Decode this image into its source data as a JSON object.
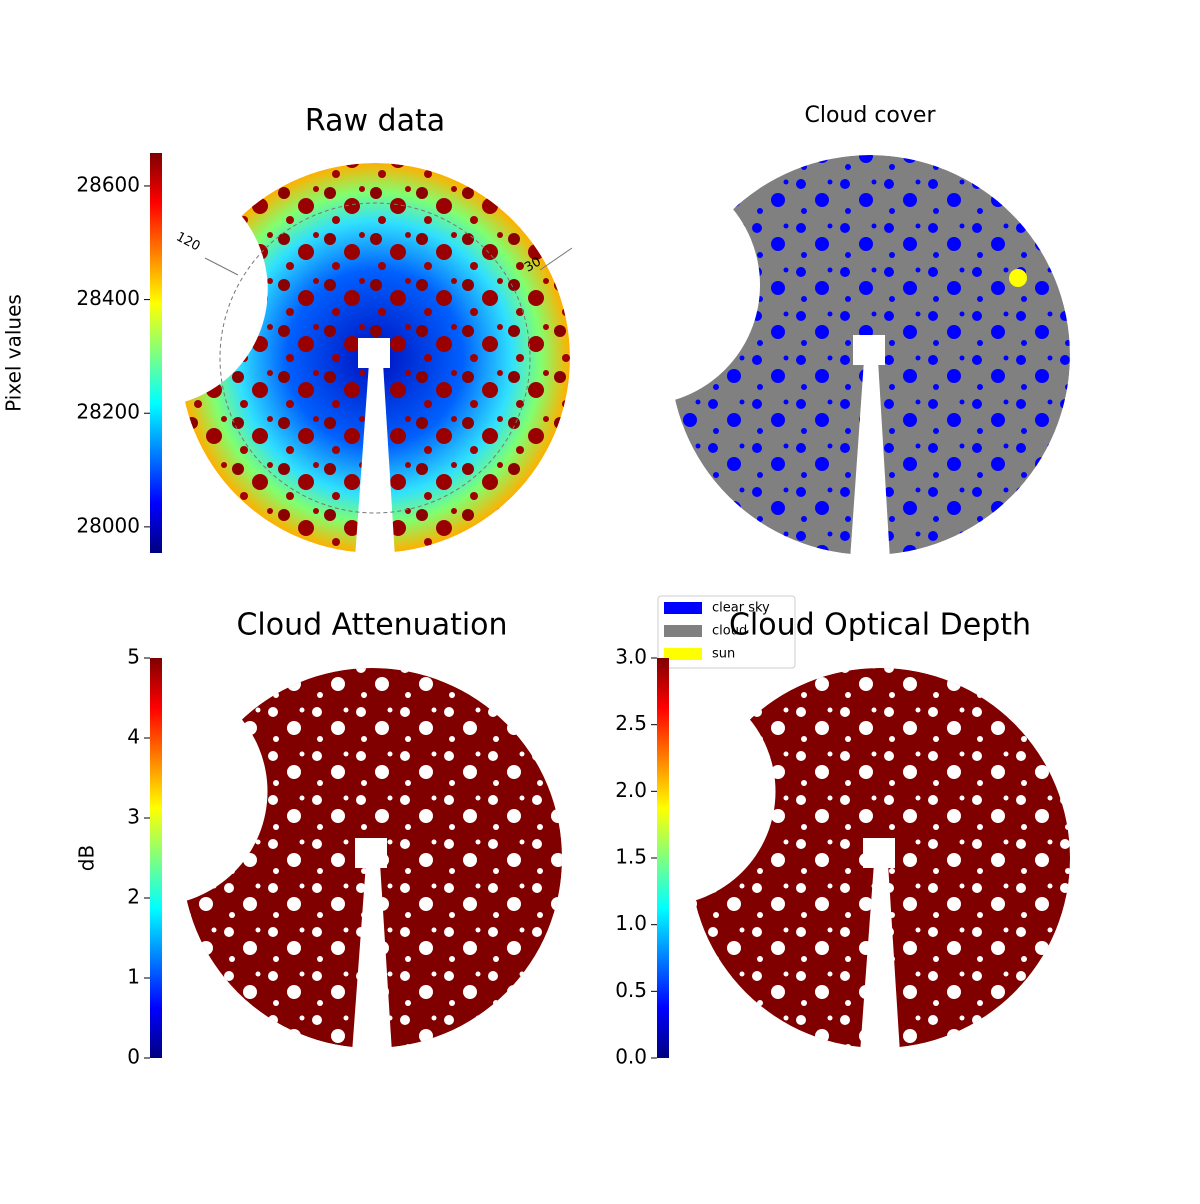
{
  "chart_data": [
    {
      "type": "image",
      "title": "Raw data",
      "azimuth_labels": [
        "120",
        "30"
      ],
      "colorbar": {
        "label": "Pixel values",
        "colormap": "jet",
        "lim": [
          27954,
          28658
        ],
        "ticks": [
          28000,
          28200,
          28400,
          28600
        ]
      }
    },
    {
      "type": "image",
      "title": "Cloud cover",
      "legend": [
        {
          "name": "clear sky",
          "color": "#0000ff"
        },
        {
          "name": "cloud",
          "color": "#808080"
        },
        {
          "name": "sun",
          "color": "#ffff00"
        }
      ]
    },
    {
      "type": "image",
      "title": "Cloud Attenuation",
      "colorbar": {
        "label": "dB",
        "colormap": "jet",
        "lim": [
          0,
          5
        ],
        "ticks": [
          0,
          1,
          2,
          3,
          4,
          5
        ]
      }
    },
    {
      "type": "image",
      "title": "Cloud Optical Depth",
      "colorbar": {
        "colormap": "jet",
        "lim": [
          0,
          3
        ],
        "ticks": [
          {
            "value": 0,
            "label": "0.0"
          },
          0.5,
          {
            "value": 1,
            "label": "1.0"
          },
          1.5,
          {
            "value": 2,
            "label": "2.0"
          },
          2.5,
          {
            "value": 3,
            "label": "3.0"
          }
        ]
      }
    }
  ]
}
